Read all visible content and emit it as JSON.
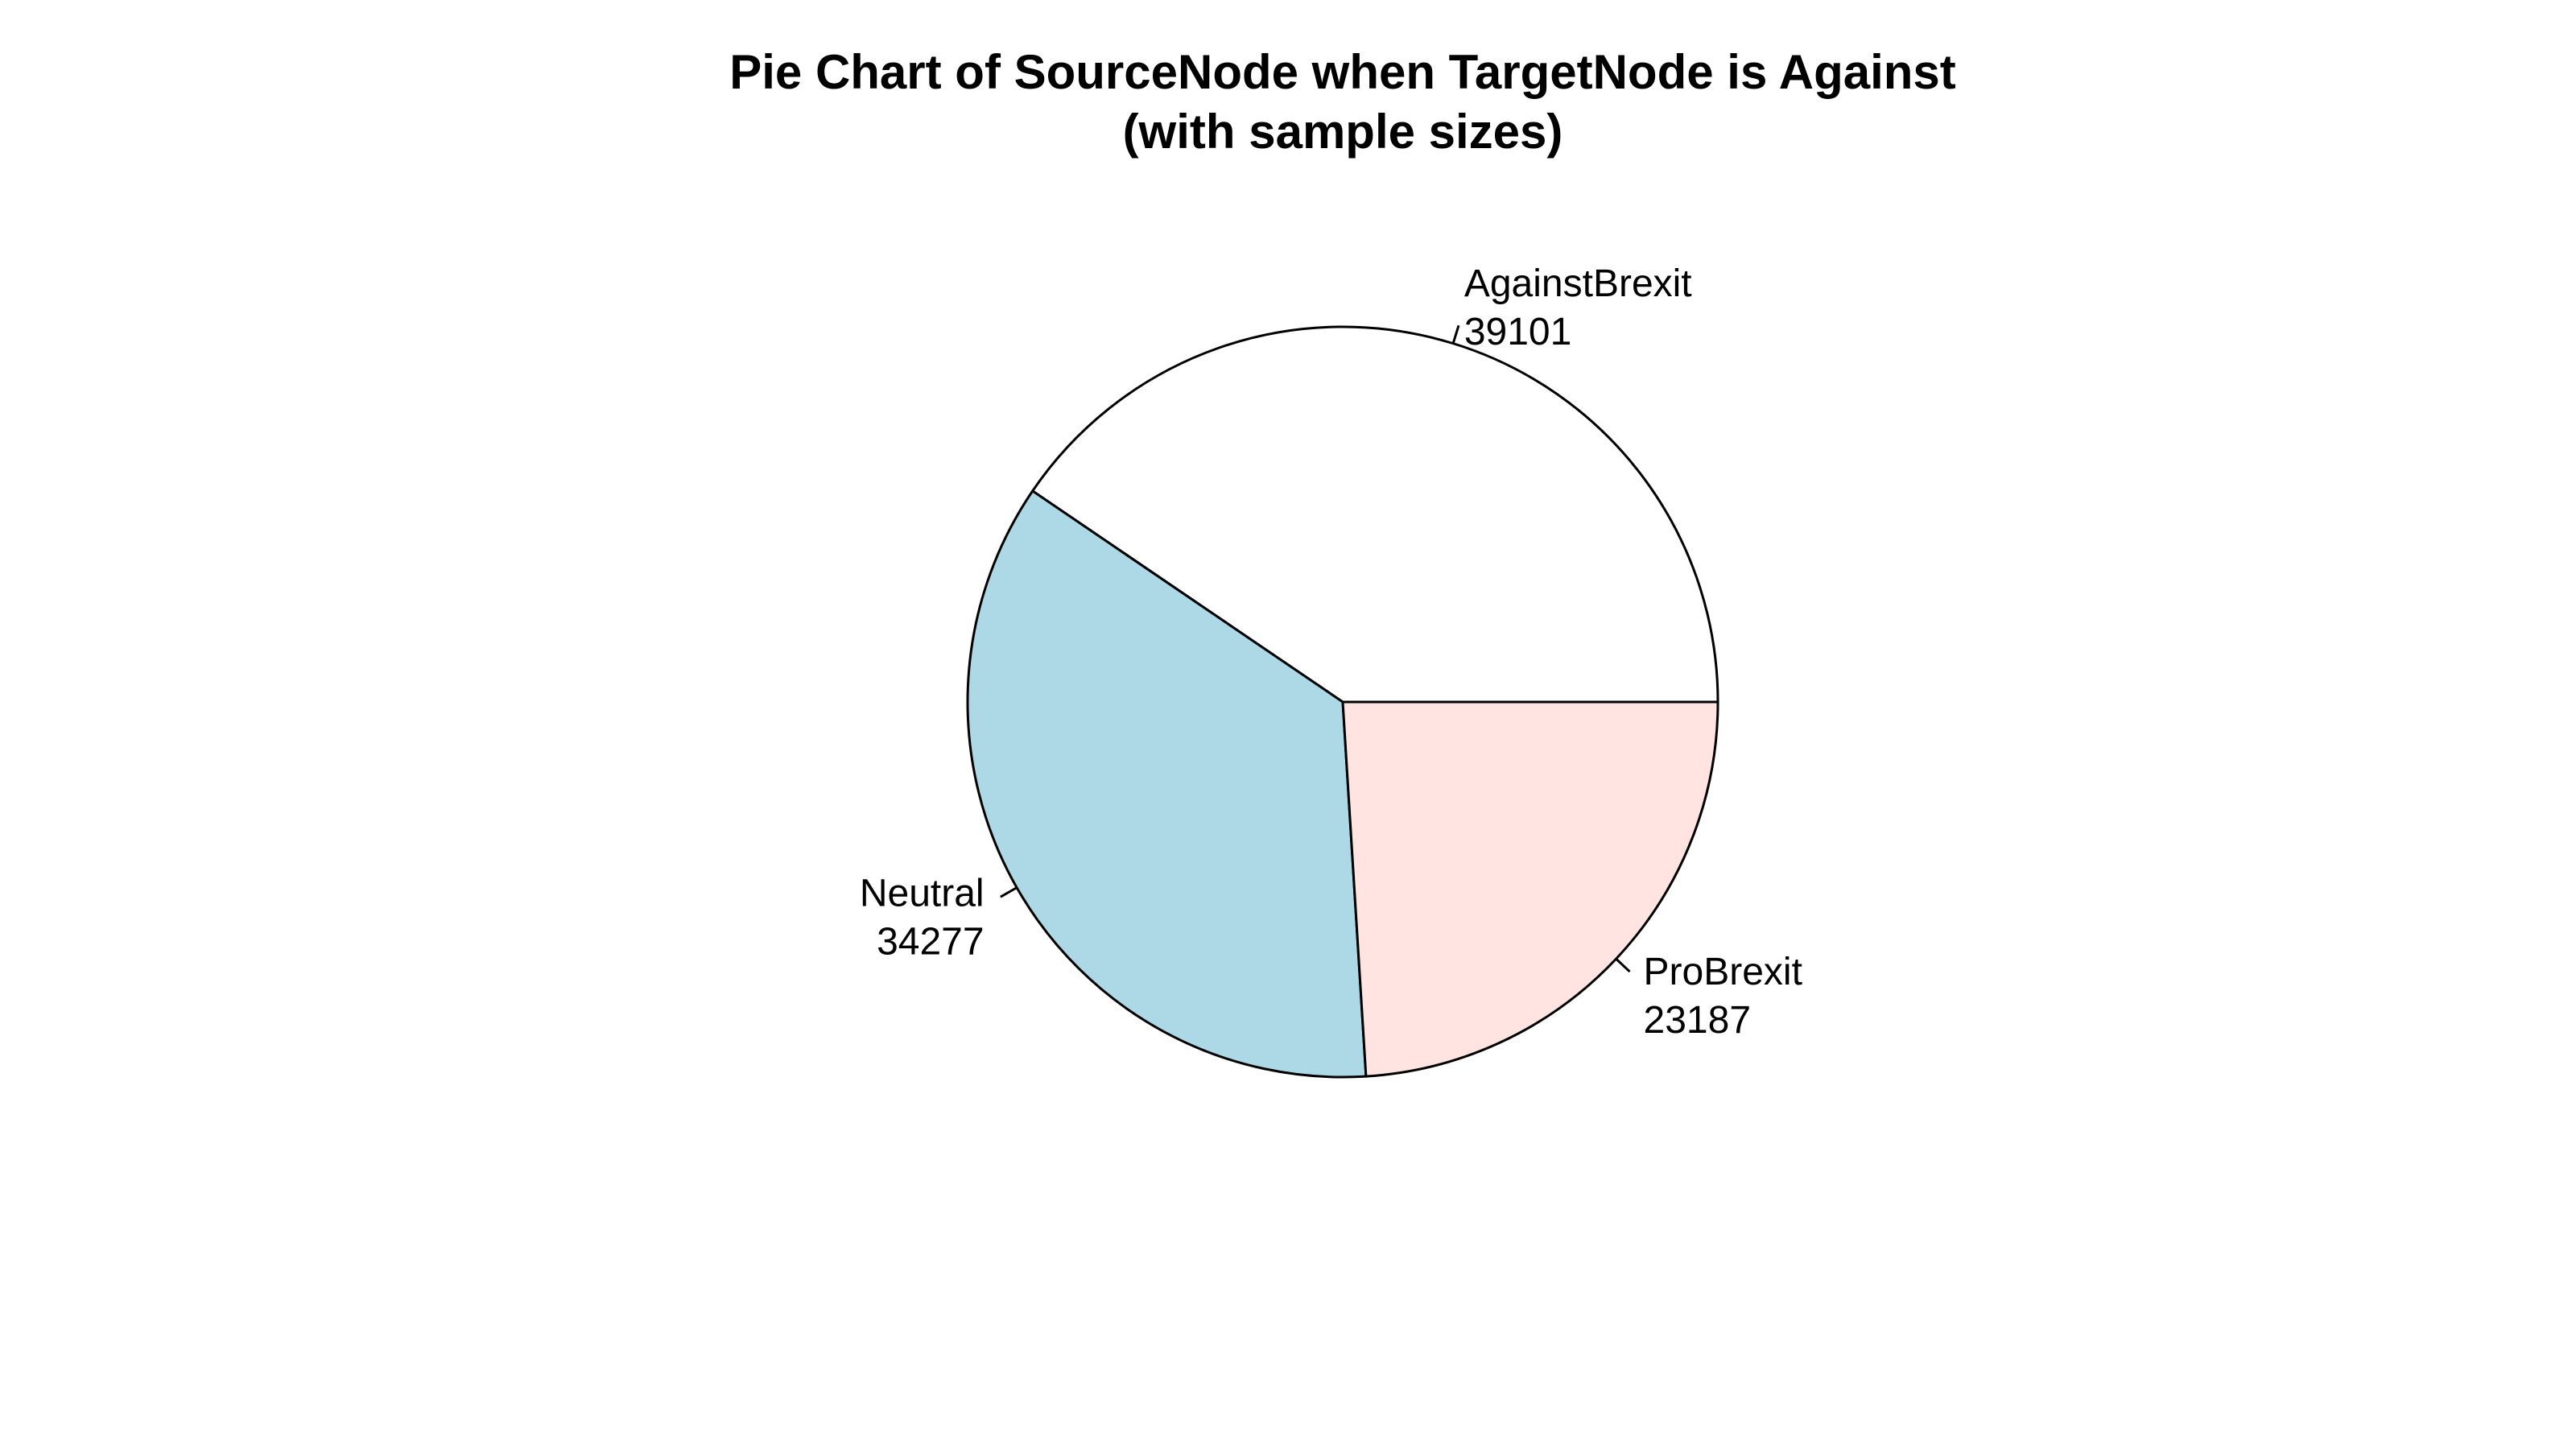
{
  "chart_data": {
    "type": "pie",
    "title": "Pie Chart of SourceNode when TargetNode is Against",
    "subtitle": "(with sample sizes)",
    "categories": [
      "AgainstBrexit",
      "Neutral",
      "ProBrexit"
    ],
    "values": [
      39101,
      34277,
      23187
    ],
    "colors": [
      "#FFFFFF",
      "#ADD8E6",
      "#FFE4E1"
    ],
    "start_angle_deg": 0,
    "direction": "counterclockwise",
    "legend": "none"
  }
}
